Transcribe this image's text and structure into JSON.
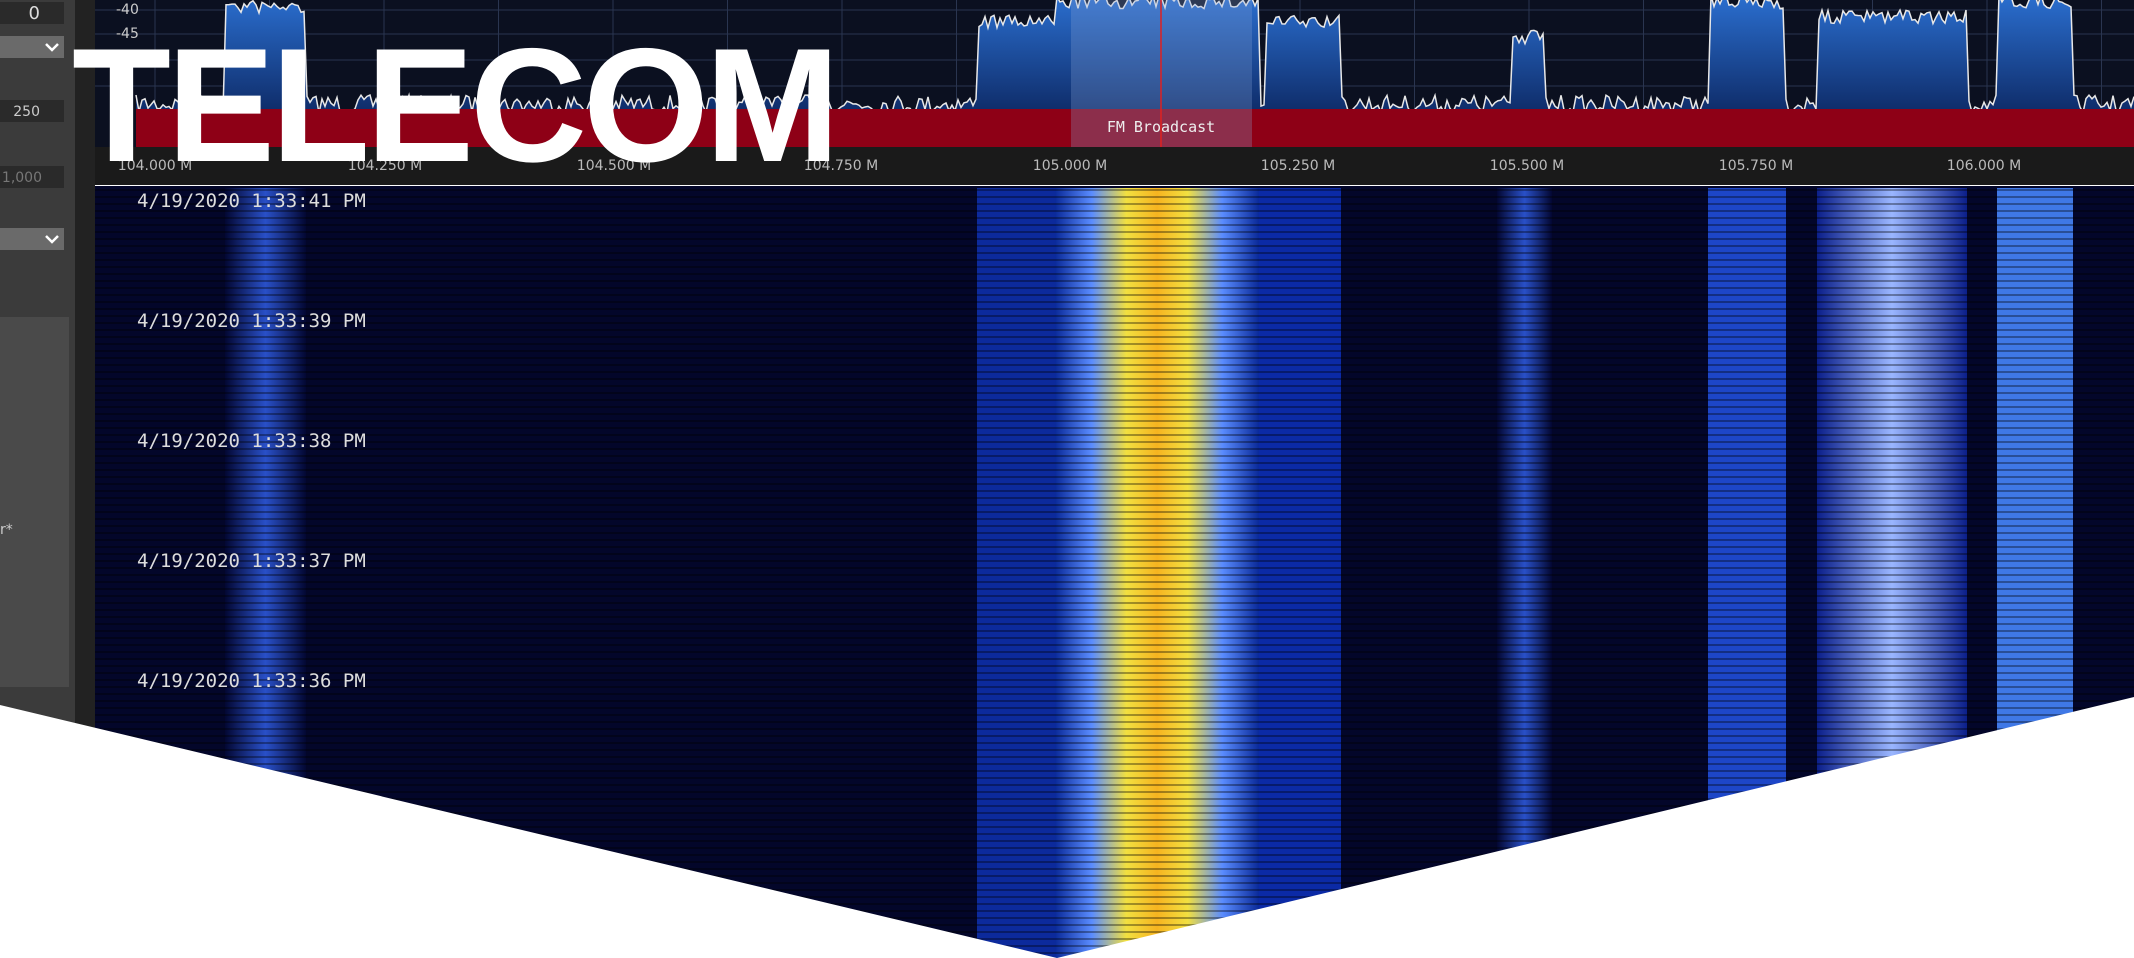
{
  "left_panel": {
    "values": [
      "0",
      "250",
      "1,000"
    ],
    "fragment": "r*"
  },
  "spectrum": {
    "db_labels": [
      "-40",
      "-45"
    ],
    "band_label": "FM Broadcast",
    "freq_labels": [
      "104.000 M",
      "104.250 M",
      "104.500 M",
      "104.750 M",
      "105.000 M",
      "105.250 M",
      "105.500 M",
      "105.750 M",
      "106.000 M"
    ]
  },
  "waterfall": {
    "timestamps": [
      "4/19/2020 1:33:41 PM",
      "4/19/2020 1:33:39 PM",
      "4/19/2020 1:33:38 PM",
      "4/19/2020 1:33:37 PM",
      "4/19/2020 1:33:36 PM"
    ]
  },
  "overlay": {
    "title": "TELECOM"
  }
}
